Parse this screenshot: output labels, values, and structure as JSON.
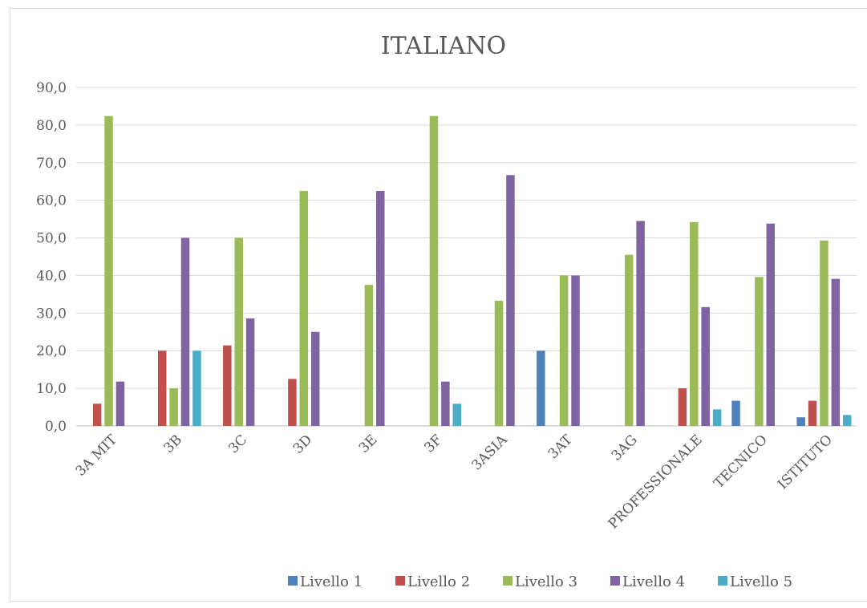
{
  "chart_data": {
    "type": "bar",
    "title": "ITALIANO",
    "xlabel": "",
    "ylabel": "",
    "ylim": [
      0,
      90
    ],
    "yticks": [
      "0,0",
      "10,0",
      "20,0",
      "30,0",
      "40,0",
      "50,0",
      "60,0",
      "70,0",
      "80,0",
      "90,0"
    ],
    "grid": true,
    "legend_position": "bottom",
    "categories": [
      "3A MIT",
      "3B",
      "3C",
      "3D",
      "3E",
      "3F",
      "3ASIA",
      "3AT",
      "3AG",
      "PROFESSIONALE",
      "TECNICO",
      "ISTITUTO"
    ],
    "series": [
      {
        "name": "Livello 1",
        "color": "#4f81bd",
        "values": [
          0,
          0,
          0,
          0,
          0,
          0,
          0,
          20.0,
          0,
          0,
          6.7,
          2.3
        ]
      },
      {
        "name": "Livello 2",
        "color": "#c0504d",
        "values": [
          5.9,
          20.0,
          21.4,
          12.5,
          0,
          0,
          0,
          0,
          0,
          10.0,
          0,
          6.7
        ]
      },
      {
        "name": "Livello 3",
        "color": "#9bbb59",
        "values": [
          82.4,
          10.0,
          50.0,
          62.5,
          37.5,
          82.4,
          33.3,
          40.0,
          45.5,
          54.2,
          39.6,
          49.3
        ]
      },
      {
        "name": "Livello 4",
        "color": "#8064a2",
        "values": [
          11.8,
          50.0,
          28.6,
          25.0,
          62.5,
          11.8,
          66.7,
          40.0,
          54.5,
          31.6,
          53.8,
          39.1
        ]
      },
      {
        "name": "Livello 5",
        "color": "#4bacc6",
        "values": [
          0,
          20.0,
          0,
          0,
          0,
          5.9,
          0,
          0,
          0,
          4.4,
          0,
          2.9
        ]
      }
    ]
  }
}
